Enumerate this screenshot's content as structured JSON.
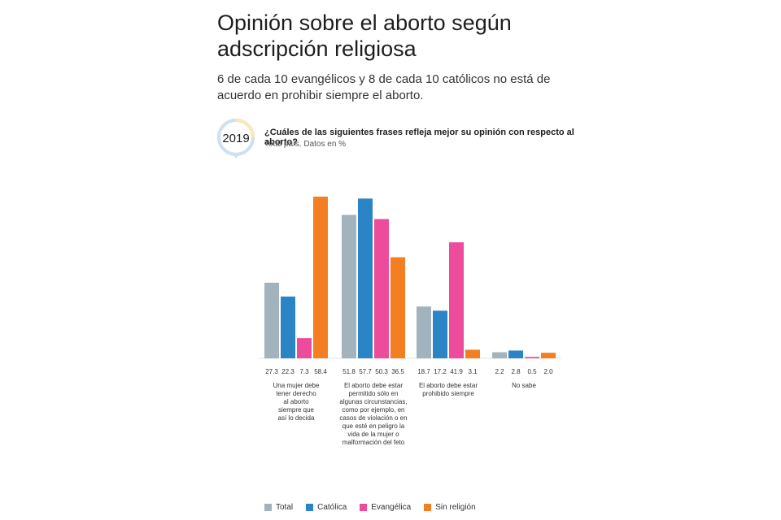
{
  "header": {
    "title": "Opinión sobre el aborto según adscripción religiosa",
    "subtitle": "6 de cada 10 evangélicos y 8 de cada 10 católicos no está de acuerdo en prohibir siempre el aborto.",
    "year": "2019",
    "question": "¿Cuáles de las siguientes frases refleja mejor su opinión con respecto al aborto?",
    "note": "Total país. Datos en %"
  },
  "colors": {
    "total": "#a2b3be",
    "catolica": "#2b84c6",
    "evangelica": "#ec4c9b",
    "sin_religion": "#f47f22",
    "badge_ring": "#cfe0ee",
    "badge_accent": "#f7e9b8"
  },
  "chart_data": {
    "type": "bar",
    "categories": [
      "Una mujer debe tener derecho al aborto siempre que así lo decida",
      "El aborto debe estar permitido sólo en algunas circunstancias, como por ejemplo, en casos de violación o en que esté en peligro la vida de la mujer o malformación del feto",
      "El aborto debe estar prohibido siempre",
      "No sabe"
    ],
    "series": [
      {
        "name": "Total",
        "values": [
          27.3,
          51.8,
          18.7,
          2.2
        ]
      },
      {
        "name": "Católica",
        "values": [
          22.3,
          57.7,
          17.2,
          2.8
        ]
      },
      {
        "name": "Evangélica",
        "values": [
          7.3,
          50.3,
          41.9,
          0.5
        ]
      },
      {
        "name": "Sin religión",
        "values": [
          58.4,
          36.5,
          3.1,
          2.0
        ]
      }
    ],
    "ylim": [
      0,
      60
    ],
    "grid": false,
    "legend": "bottom-left"
  }
}
